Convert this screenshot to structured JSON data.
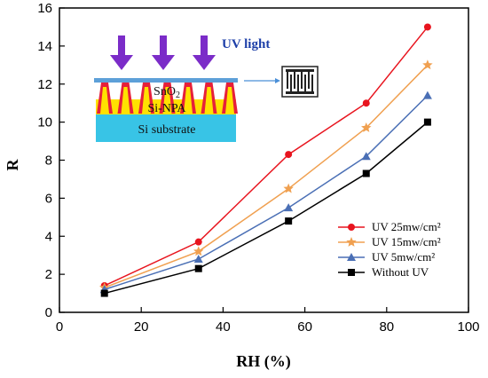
{
  "chart_data": {
    "type": "line",
    "xlabel": "RH (%)",
    "ylabel": "R",
    "xlim": [
      0,
      100
    ],
    "ylim": [
      0,
      16
    ],
    "xticks": [
      0,
      20,
      40,
      60,
      80,
      100
    ],
    "yticks": [
      0,
      2,
      4,
      6,
      8,
      10,
      12,
      14,
      16
    ],
    "grid": false,
    "legend_position": "bottom-right",
    "x": [
      11,
      34,
      56,
      75,
      90
    ],
    "series": [
      {
        "name": "UV 25mw/cm²",
        "color": "#e8141e",
        "marker": "circle",
        "values": [
          1.4,
          3.7,
          8.3,
          11.0,
          15.0
        ]
      },
      {
        "name": "UV 15mw/cm²",
        "color": "#f0a050",
        "marker": "star",
        "values": [
          1.3,
          3.2,
          6.5,
          9.7,
          13.0
        ]
      },
      {
        "name": "UV  5mw/cm²",
        "color": "#4a6fb5",
        "marker": "triangle",
        "values": [
          1.2,
          2.8,
          5.5,
          8.2,
          11.4
        ]
      },
      {
        "name": "Without UV",
        "color": "#000000",
        "marker": "square",
        "values": [
          1.0,
          2.3,
          4.8,
          7.3,
          10.0
        ]
      }
    ]
  },
  "inset": {
    "uv_label": "UV light",
    "layer_sno2": "SnO",
    "layer_sno2_sub": "2",
    "layer_npa": "Si-NPA",
    "layer_substrate": "Si substrate"
  }
}
